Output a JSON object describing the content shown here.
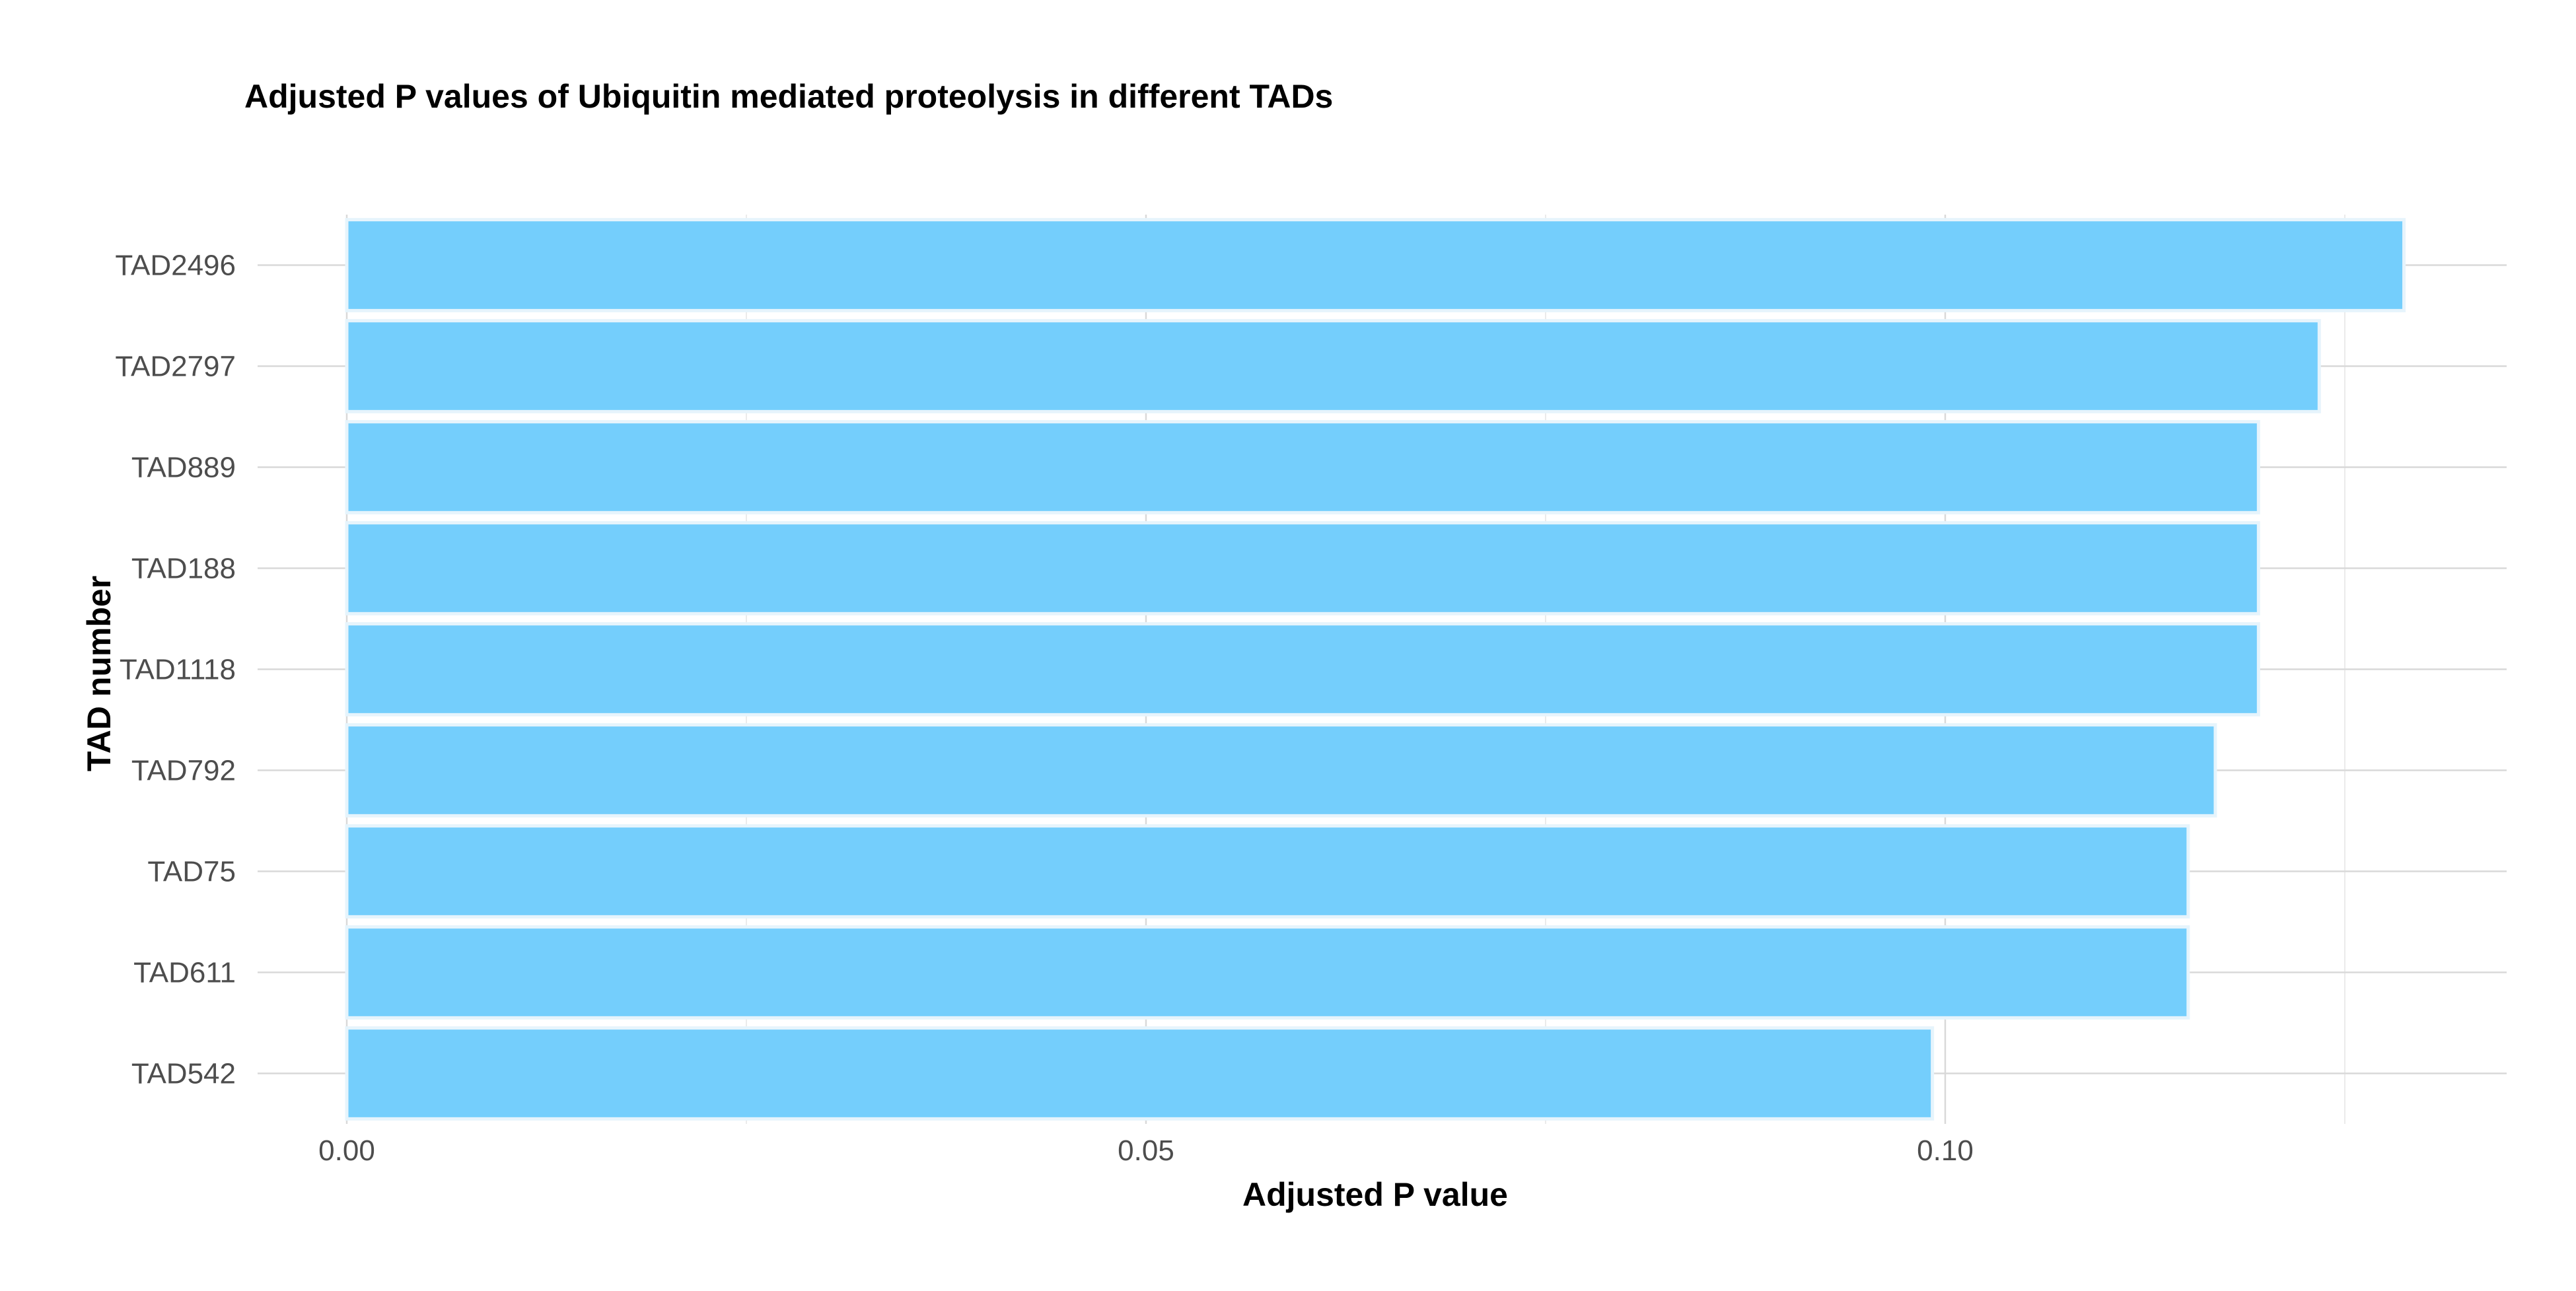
{
  "chart_data": {
    "type": "bar",
    "orientation": "horizontal",
    "title": "Adjusted P values of Ubiquitin mediated proteolysis in different TADs",
    "xlabel": "Adjusted P value",
    "ylabel": "TAD number",
    "categories": [
      "TAD2496",
      "TAD2797",
      "TAD889",
      "TAD188",
      "TAD1118",
      "TAD792",
      "TAD75",
      "TAD611",
      "TAD542"
    ],
    "values": [
      0.1287,
      0.1234,
      0.1196,
      0.1196,
      0.1196,
      0.1169,
      0.1152,
      0.1152,
      0.0992
    ],
    "xlim": [
      0,
      0.135
    ],
    "xticks": [
      0.0,
      0.05,
      0.1
    ],
    "xtick_labels": [
      "0.00",
      "0.05",
      "0.10"
    ],
    "grid": true,
    "legend": "none",
    "colors": {
      "bar_fill": "#74cefc",
      "bar_stroke": "#e6f4fc",
      "grid_major": "#d9d9d9",
      "grid_minor": "#ebebeb",
      "tick_label": "#4d4d4d",
      "title": "#000000"
    }
  }
}
